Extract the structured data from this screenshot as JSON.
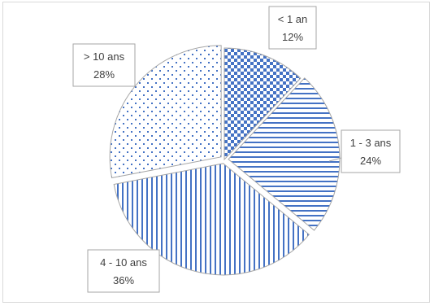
{
  "chart_data": {
    "type": "pie",
    "title": "",
    "categories": [
      "< 1 an",
      "1 - 3 ans",
      "4 - 10 ans",
      "> 10 ans"
    ],
    "values": [
      12,
      24,
      36,
      28
    ],
    "labels": [
      "12%",
      "24%",
      "36%",
      "28%"
    ],
    "patterns": [
      "checker",
      "horizontal-lines",
      "vertical-lines",
      "dots"
    ],
    "legend": "none",
    "colors": {
      "series": "#4472c4",
      "background": "#ffffff",
      "slice_border": "#a6a6a6"
    }
  }
}
